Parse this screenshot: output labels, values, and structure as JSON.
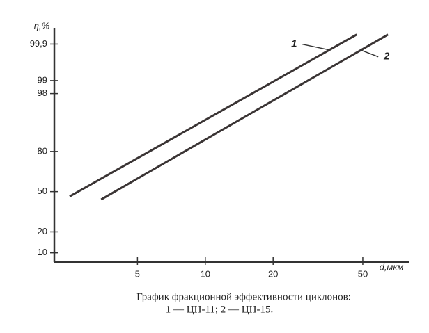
{
  "chart_data": {
    "type": "line",
    "y_label": "η,%",
    "x_label": "d,мкм",
    "caption": [
      "График фракционной эффективности циклонов:",
      "1 — ЦН-11; 2 — ЦН-15."
    ],
    "x_scale": "log",
    "y_scale": "probability",
    "xlim": [
      2.5,
      80
    ],
    "xticks": [
      5,
      10,
      20,
      50
    ],
    "ylim": [
      7,
      99.97
    ],
    "yticks": [
      10,
      20,
      50,
      80,
      98,
      99,
      {
        "value": 99.9,
        "label": "99,9"
      }
    ],
    "series": [
      {
        "name": "1",
        "color": "#3a3434",
        "x": [
          2.5,
          47
        ],
        "values": [
          46,
          99.95
        ]
      },
      {
        "name": "2",
        "color": "#3a3434",
        "x": [
          3.45,
          64.7
        ],
        "values": [
          43.5,
          99.95
        ]
      }
    ]
  }
}
